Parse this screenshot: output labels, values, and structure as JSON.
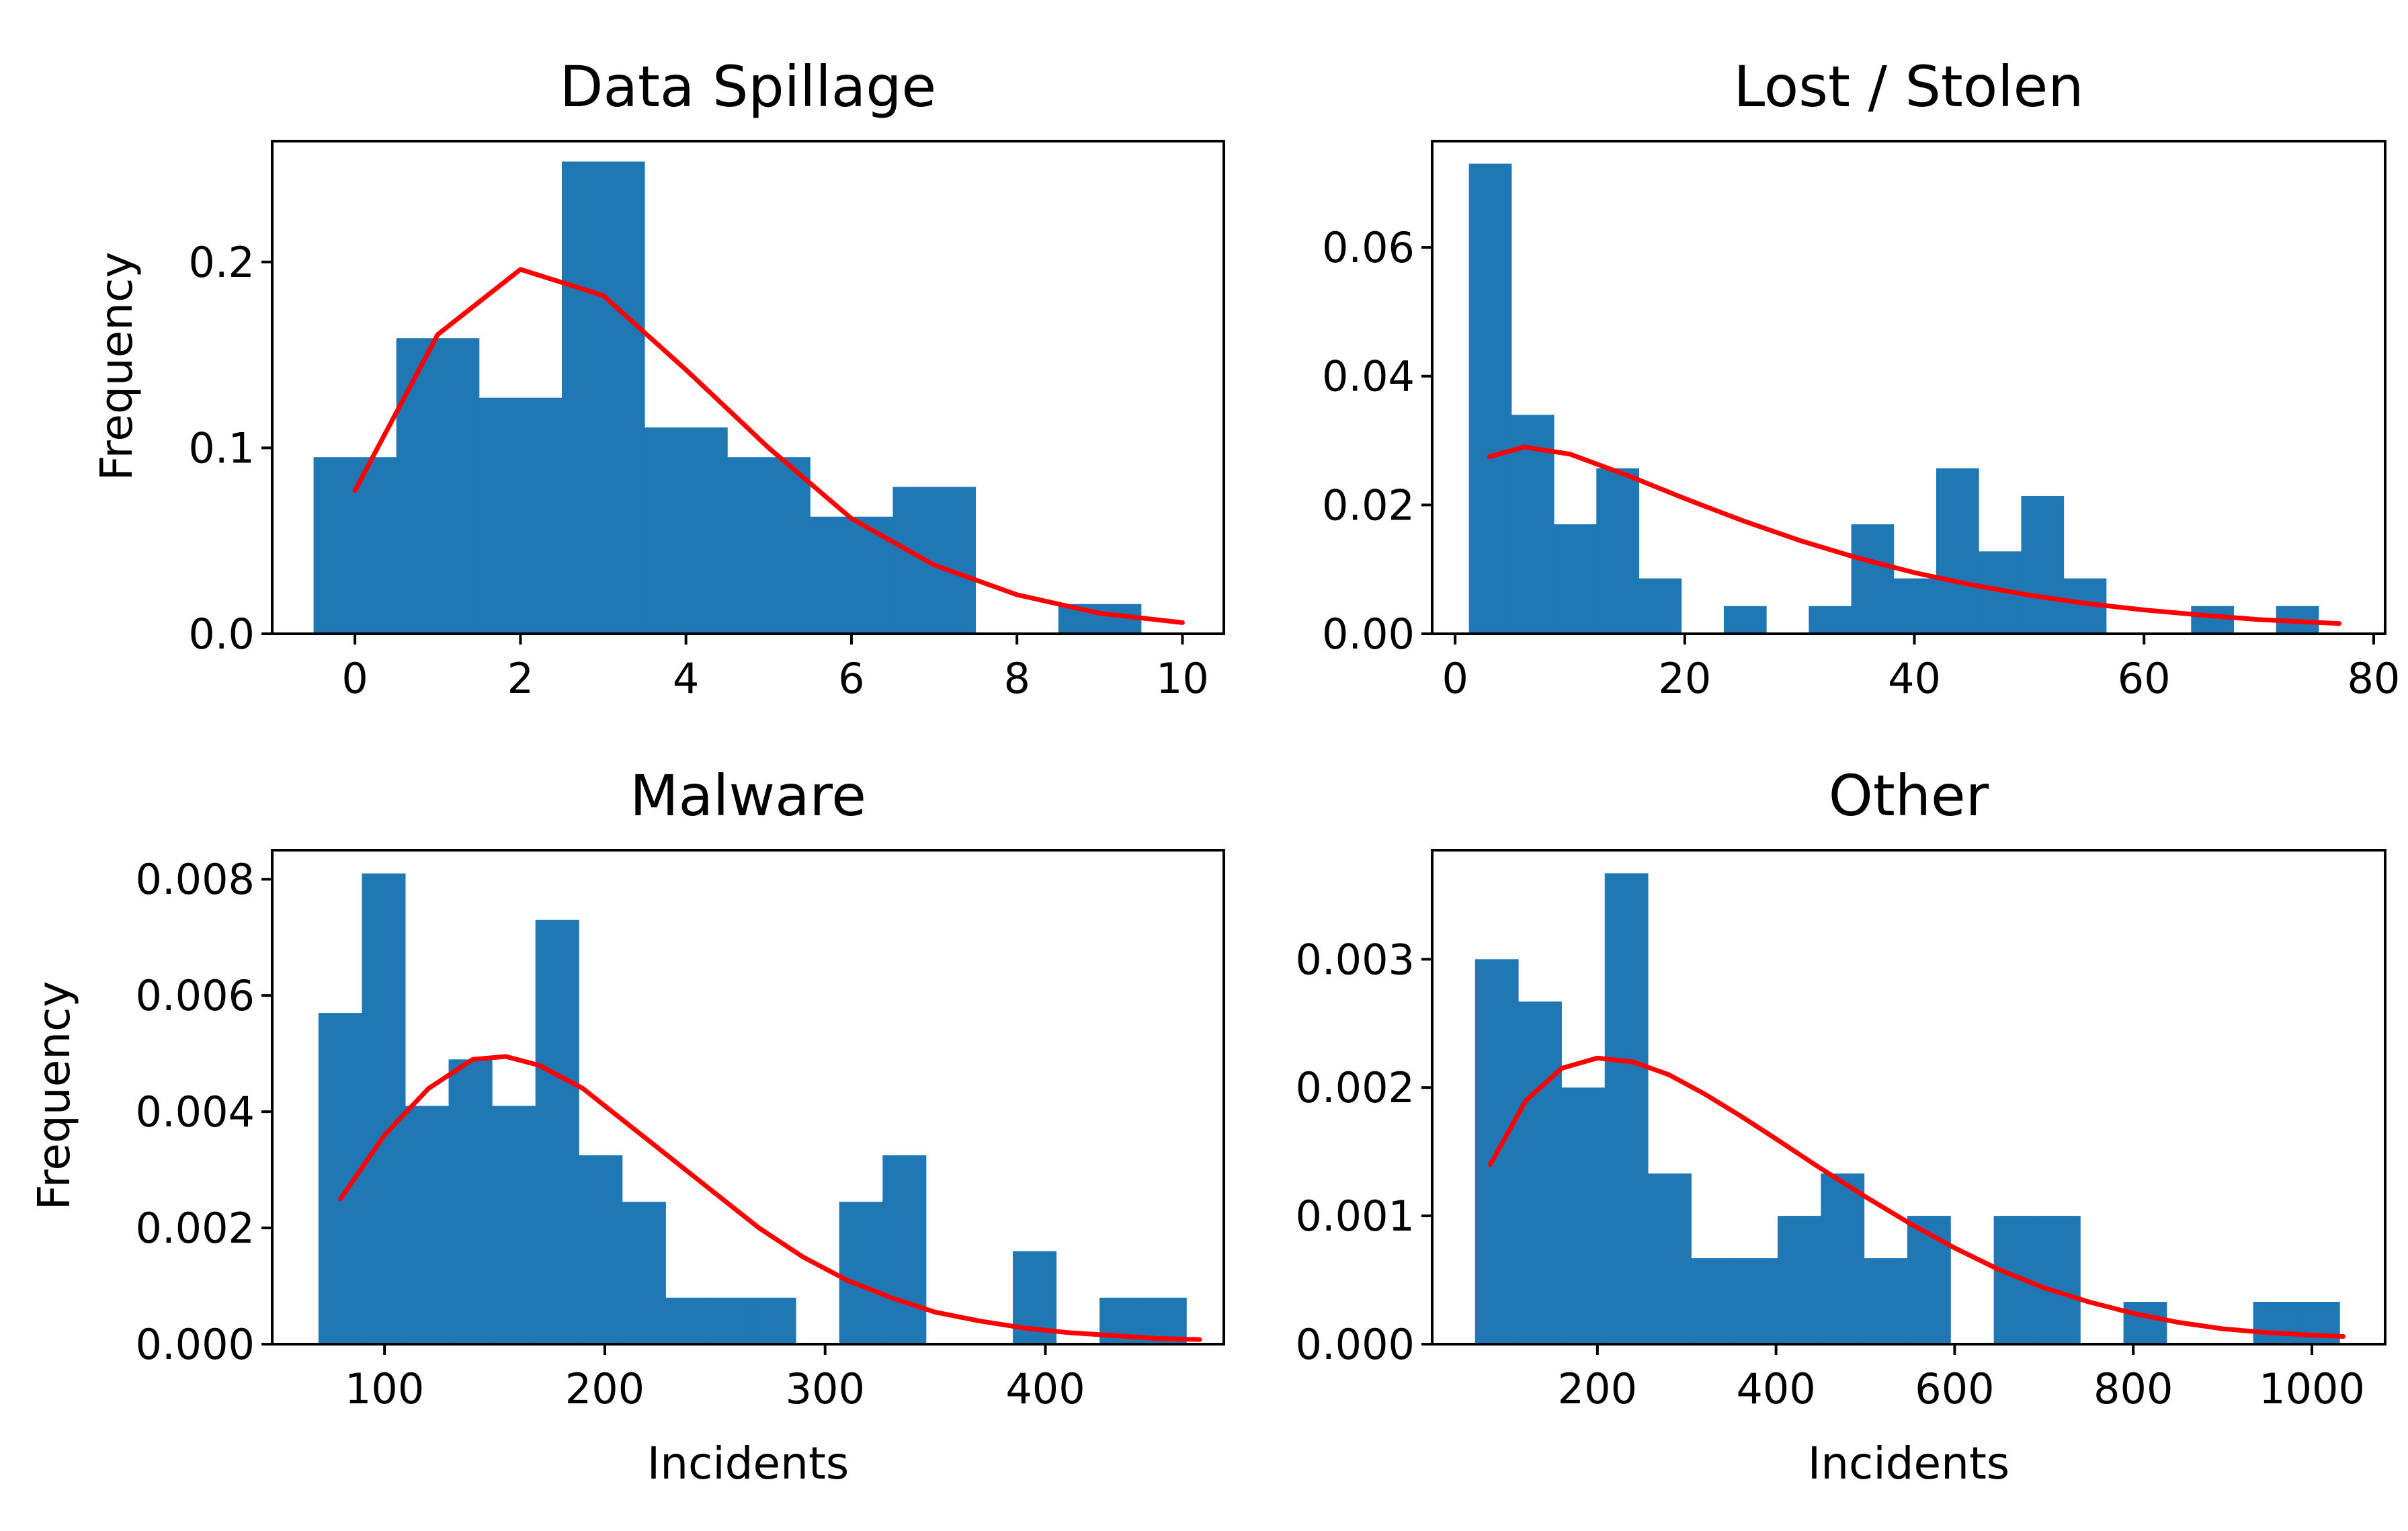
{
  "colors": {
    "bar": "#1f77b4",
    "fit": "#ff0000",
    "axis": "#000000",
    "background": "#ffffff"
  },
  "chart_data": [
    {
      "type": "bar",
      "subtype": "histogram",
      "title": "Data Spillage",
      "xlabel": "",
      "ylabel": "Frequency",
      "xlim": [
        -1,
        10.5
      ],
      "ylim": [
        0,
        0.265
      ],
      "xticks": [
        0,
        2,
        4,
        6,
        8,
        10
      ],
      "xtick_labels": [
        "0",
        "2",
        "4",
        "6",
        "8",
        "10"
      ],
      "yticks": [
        0,
        0.1,
        0.2
      ],
      "ytick_labels": [
        "0.0",
        "0.1",
        "0.2"
      ],
      "bins": [
        {
          "x0": -0.5,
          "x1": 0.5,
          "value": 0.095
        },
        {
          "x0": 0.5,
          "x1": 1.5,
          "value": 0.159
        },
        {
          "x0": 1.5,
          "x1": 2.5,
          "value": 0.127
        },
        {
          "x0": 2.5,
          "x1": 3.5,
          "value": 0.254
        },
        {
          "x0": 3.5,
          "x1": 4.5,
          "value": 0.111
        },
        {
          "x0": 4.5,
          "x1": 5.5,
          "value": 0.095
        },
        {
          "x0": 5.5,
          "x1": 6.5,
          "value": 0.063
        },
        {
          "x0": 6.5,
          "x1": 7.5,
          "value": 0.079
        },
        {
          "x0": 7.5,
          "x1": 8.5,
          "value": 0.0
        },
        {
          "x0": 8.5,
          "x1": 9.5,
          "value": 0.016
        }
      ],
      "fit_curve": {
        "x": [
          0,
          1,
          2,
          3,
          4,
          5,
          6,
          7,
          8,
          9,
          10
        ],
        "y": [
          0.077,
          0.161,
          0.196,
          0.182,
          0.142,
          0.1,
          0.062,
          0.037,
          0.021,
          0.011,
          0.006
        ]
      }
    },
    {
      "type": "bar",
      "subtype": "histogram",
      "title": "Lost / Stolen",
      "xlabel": "",
      "ylabel": "",
      "xlim": [
        -2,
        81
      ],
      "ylim": [
        0,
        0.0765
      ],
      "xticks": [
        0,
        20,
        40,
        60,
        80
      ],
      "xtick_labels": [
        "0",
        "20",
        "40",
        "60",
        "80"
      ],
      "yticks": [
        0,
        0.02,
        0.04,
        0.06
      ],
      "ytick_labels": [
        "0.00",
        "0.02",
        "0.04",
        "0.06"
      ],
      "bins": [
        {
          "x0": 1.2,
          "x1": 4.9,
          "value": 0.073
        },
        {
          "x0": 4.9,
          "x1": 8.6,
          "value": 0.034
        },
        {
          "x0": 8.6,
          "x1": 12.3,
          "value": 0.017
        },
        {
          "x0": 12.3,
          "x1": 16.0,
          "value": 0.0257
        },
        {
          "x0": 16.0,
          "x1": 19.7,
          "value": 0.0086
        },
        {
          "x0": 19.7,
          "x1": 23.4,
          "value": 0.0
        },
        {
          "x0": 23.4,
          "x1": 27.1,
          "value": 0.0043
        },
        {
          "x0": 27.1,
          "x1": 30.8,
          "value": 0.0
        },
        {
          "x0": 30.8,
          "x1": 34.5,
          "value": 0.0043
        },
        {
          "x0": 34.5,
          "x1": 38.2,
          "value": 0.017
        },
        {
          "x0": 38.2,
          "x1": 41.9,
          "value": 0.0086
        },
        {
          "x0": 41.9,
          "x1": 45.6,
          "value": 0.0257
        },
        {
          "x0": 45.6,
          "x1": 49.3,
          "value": 0.0128
        },
        {
          "x0": 49.3,
          "x1": 53.0,
          "value": 0.0214
        },
        {
          "x0": 53.0,
          "x1": 56.7,
          "value": 0.0086
        },
        {
          "x0": 56.7,
          "x1": 60.4,
          "value": 0.0
        },
        {
          "x0": 60.4,
          "x1": 64.1,
          "value": 0.0
        },
        {
          "x0": 64.1,
          "x1": 67.8,
          "value": 0.0043
        },
        {
          "x0": 67.8,
          "x1": 71.5,
          "value": 0.0
        },
        {
          "x0": 71.5,
          "x1": 75.2,
          "value": 0.0043
        }
      ],
      "fit_curve": {
        "x": [
          3,
          6,
          10,
          15,
          20,
          25,
          30,
          35,
          40,
          45,
          50,
          55,
          60,
          65,
          70,
          77
        ],
        "y": [
          0.0275,
          0.029,
          0.0279,
          0.0246,
          0.021,
          0.0176,
          0.0145,
          0.0118,
          0.0095,
          0.0076,
          0.006,
          0.0047,
          0.0037,
          0.0029,
          0.0022,
          0.0016
        ]
      }
    },
    {
      "type": "bar",
      "subtype": "histogram",
      "title": "Malware",
      "xlabel": "Incidents",
      "ylabel": "Frequency",
      "xlim": [
        49,
        481
      ],
      "ylim": [
        0,
        0.0085
      ],
      "xticks": [
        100,
        200,
        300,
        400
      ],
      "xtick_labels": [
        "100",
        "200",
        "300",
        "400"
      ],
      "yticks": [
        0,
        0.002,
        0.004,
        0.006,
        0.008
      ],
      "ytick_labels": [
        "0.000",
        "0.002",
        "0.004",
        "0.006",
        "0.008"
      ],
      "bins": [
        {
          "x0": 70,
          "x1": 89.7,
          "value": 0.0057
        },
        {
          "x0": 89.7,
          "x1": 109.4,
          "value": 0.0081
        },
        {
          "x0": 109.4,
          "x1": 129.1,
          "value": 0.0041
        },
        {
          "x0": 129.1,
          "x1": 148.8,
          "value": 0.0049
        },
        {
          "x0": 148.8,
          "x1": 168.5,
          "value": 0.0041
        },
        {
          "x0": 168.5,
          "x1": 188.2,
          "value": 0.0073
        },
        {
          "x0": 188.2,
          "x1": 207.9,
          "value": 0.00325
        },
        {
          "x0": 207.9,
          "x1": 227.6,
          "value": 0.00245
        },
        {
          "x0": 227.6,
          "x1": 247.3,
          "value": 0.0008
        },
        {
          "x0": 247.3,
          "x1": 267.0,
          "value": 0.0008
        },
        {
          "x0": 267.0,
          "x1": 286.7,
          "value": 0.0008
        },
        {
          "x0": 286.7,
          "x1": 306.4,
          "value": 0.0
        },
        {
          "x0": 306.4,
          "x1": 326.1,
          "value": 0.00245
        },
        {
          "x0": 326.1,
          "x1": 345.8,
          "value": 0.00325
        },
        {
          "x0": 345.8,
          "x1": 365.5,
          "value": 0.0
        },
        {
          "x0": 365.5,
          "x1": 385.2,
          "value": 0.0
        },
        {
          "x0": 385.2,
          "x1": 404.9,
          "value": 0.0016
        },
        {
          "x0": 404.9,
          "x1": 424.6,
          "value": 0.0
        },
        {
          "x0": 424.6,
          "x1": 444.3,
          "value": 0.0008
        },
        {
          "x0": 444.3,
          "x1": 464.0,
          "value": 0.0008
        }
      ],
      "fit_curve": {
        "x": [
          80,
          100,
          120,
          140,
          155,
          170,
          190,
          210,
          230,
          250,
          270,
          290,
          310,
          330,
          350,
          370,
          390,
          410,
          430,
          450,
          470
        ],
        "y": [
          0.0025,
          0.0036,
          0.0044,
          0.0049,
          0.00495,
          0.0048,
          0.0044,
          0.0038,
          0.0032,
          0.0026,
          0.002,
          0.0015,
          0.0011,
          0.0008,
          0.00055,
          0.0004,
          0.00028,
          0.0002,
          0.00015,
          0.0001,
          8e-05
        ]
      }
    },
    {
      "type": "bar",
      "subtype": "histogram",
      "title": "Other",
      "xlabel": "Incidents",
      "ylabel": "",
      "xlim": [
        15,
        1082
      ],
      "ylim": [
        0,
        0.00385
      ],
      "xticks": [
        200,
        400,
        600,
        800,
        1000
      ],
      "xtick_labels": [
        "200",
        "400",
        "600",
        "800",
        "1000"
      ],
      "yticks": [
        0,
        0.001,
        0.002,
        0.003
      ],
      "ytick_labels": [
        "0.000",
        "0.001",
        "0.002",
        "0.003"
      ],
      "bins": [
        {
          "x0": 63,
          "x1": 111.4,
          "value": 0.003
        },
        {
          "x0": 111.4,
          "x1": 159.8,
          "value": 0.00267
        },
        {
          "x0": 159.8,
          "x1": 208.2,
          "value": 0.002
        },
        {
          "x0": 208.2,
          "x1": 256.6,
          "value": 0.00367
        },
        {
          "x0": 256.6,
          "x1": 305.0,
          "value": 0.00133
        },
        {
          "x0": 305.0,
          "x1": 353.4,
          "value": 0.00067
        },
        {
          "x0": 353.4,
          "x1": 401.8,
          "value": 0.00067
        },
        {
          "x0": 401.8,
          "x1": 450.2,
          "value": 0.001
        },
        {
          "x0": 450.2,
          "x1": 498.6,
          "value": 0.00133
        },
        {
          "x0": 498.6,
          "x1": 547.0,
          "value": 0.00067
        },
        {
          "x0": 547.0,
          "x1": 595.4,
          "value": 0.001
        },
        {
          "x0": 595.4,
          "x1": 643.8,
          "value": 0.0
        },
        {
          "x0": 643.8,
          "x1": 692.2,
          "value": 0.001
        },
        {
          "x0": 692.2,
          "x1": 740.6,
          "value": 0.001
        },
        {
          "x0": 740.6,
          "x1": 789.0,
          "value": 0.0
        },
        {
          "x0": 789.0,
          "x1": 837.4,
          "value": 0.00033
        },
        {
          "x0": 837.4,
          "x1": 885.8,
          "value": 0.0
        },
        {
          "x0": 885.8,
          "x1": 934.2,
          "value": 0.0
        },
        {
          "x0": 934.2,
          "x1": 982.6,
          "value": 0.00033
        },
        {
          "x0": 982.6,
          "x1": 1031.0,
          "value": 0.00033
        }
      ],
      "fit_curve": {
        "x": [
          80,
          120,
          160,
          200,
          240,
          280,
          320,
          360,
          400,
          450,
          500,
          550,
          600,
          650,
          700,
          750,
          800,
          850,
          900,
          950,
          1000,
          1035
        ],
        "y": [
          0.0014,
          0.0019,
          0.00215,
          0.00223,
          0.0022,
          0.0021,
          0.00195,
          0.00178,
          0.0016,
          0.00137,
          0.00115,
          0.00094,
          0.00075,
          0.00058,
          0.00044,
          0.00033,
          0.00024,
          0.00017,
          0.00012,
          9e-05,
          7e-05,
          6e-05
        ]
      }
    }
  ]
}
